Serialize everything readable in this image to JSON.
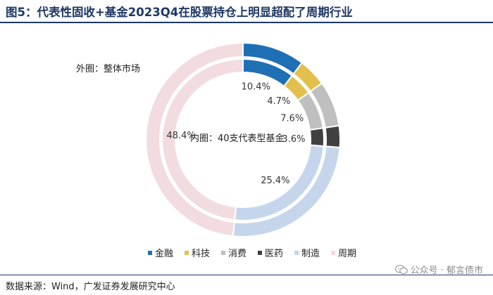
{
  "header": {
    "title": "图5：代表性固收+基金2023Q4在股票持仓上明显超配了周期行业"
  },
  "footer": {
    "source": "数据来源：Wind，广发证券发展研究中心",
    "watermark": "公众号 · 郁言债市"
  },
  "chart_data": {
    "type": "pie",
    "annotations": {
      "outer": "外圈：整体市场",
      "inner": "内圈：40支代表型基金"
    },
    "categories": [
      "金融",
      "科技",
      "消费",
      "医药",
      "制造",
      "周期"
    ],
    "colors": [
      "#1f6fb5",
      "#e3c04e",
      "#bfbfbf",
      "#404040",
      "#c5d6ec",
      "#f2dcdf"
    ],
    "series": [
      {
        "ring": "outer",
        "values": [
          10.4,
          4.7,
          7.6,
          3.6,
          25.4,
          48.4
        ]
      },
      {
        "ring": "inner",
        "values": [
          10.4,
          4.7,
          7.6,
          3.6,
          25.4,
          48.4
        ]
      }
    ],
    "data_labels": [
      "10.4%",
      "4.7%",
      "7.6%",
      "3.6%",
      "25.4%",
      "48.4%"
    ],
    "legend_position": "bottom"
  }
}
